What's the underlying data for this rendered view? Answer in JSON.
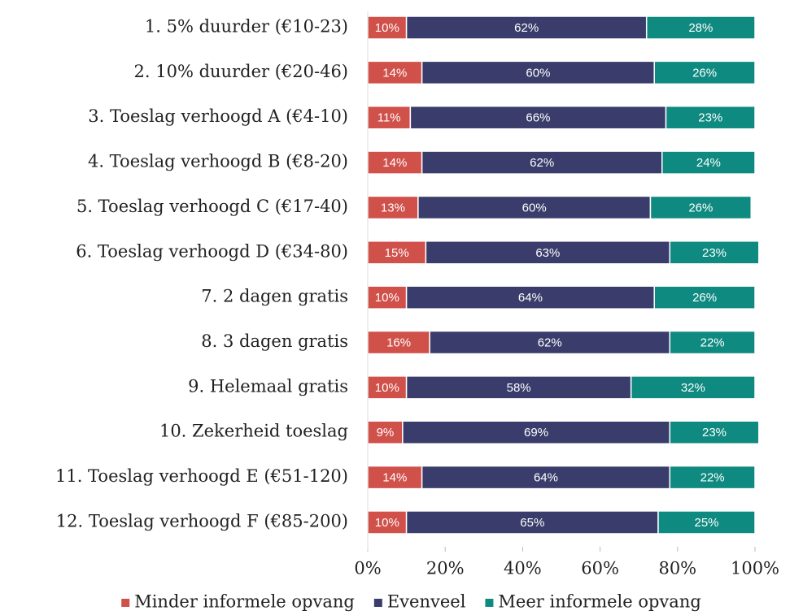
{
  "chart_data": {
    "type": "stacked-bar-horizontal",
    "categories": [
      "1. 5% duurder (€10-23)",
      "2. 10% duurder (€20-46)",
      "3. Toeslag verhoogd A (€4-10)",
      "4. Toeslag verhoogd B (€8-20)",
      "5. Toeslag verhoogd C (€17-40)",
      "6. Toeslag verhoogd D (€34-80)",
      "7. 2 dagen gratis",
      "8. 3 dagen gratis",
      "9. Helemaal gratis",
      "10. Zekerheid toeslag",
      "11. Toeslag verhoogd E (€51-120)",
      "12. Toeslag verhoogd F  (€85-200)"
    ],
    "series": [
      {
        "name": "Minder informele opvang",
        "color": "#d0504a",
        "values": [
          10,
          14,
          11,
          14,
          13,
          15,
          10,
          16,
          10,
          9,
          14,
          10
        ],
        "value_labels": [
          "10%",
          "14%",
          "11%",
          "14%",
          "13%",
          "15%",
          "10%",
          "16%",
          "10%",
          "9%",
          "14%",
          "10%"
        ]
      },
      {
        "name": "Evenveel",
        "color": "#3a3d6b",
        "values": [
          62,
          60,
          66,
          62,
          60,
          63,
          64,
          62,
          58,
          69,
          64,
          65
        ],
        "value_labels": [
          "62%",
          "60%",
          "66%",
          "62%",
          "60%",
          "63%",
          "64%",
          "62%",
          "58%",
          "69%",
          "64%",
          "65%"
        ]
      },
      {
        "name": "Meer informele opvang",
        "color": "#0f8a80",
        "values": [
          28,
          26,
          23,
          24,
          26,
          23,
          26,
          22,
          32,
          23,
          22,
          25
        ],
        "value_labels": [
          "28%",
          "26%",
          "23%",
          "24%",
          "26%",
          "23%",
          "26%",
          "22%",
          "32%",
          "23%",
          "22%",
          "25%"
        ]
      }
    ],
    "xlim": [
      0,
      100
    ],
    "xticks": [
      {
        "value": 0,
        "label": "0%"
      },
      {
        "value": 20,
        "label": "20%"
      },
      {
        "value": 40,
        "label": "40%"
      },
      {
        "value": 60,
        "label": "60%"
      },
      {
        "value": 80,
        "label": "80%"
      },
      {
        "value": 100,
        "label": "100%"
      }
    ],
    "legend": "bottom"
  }
}
